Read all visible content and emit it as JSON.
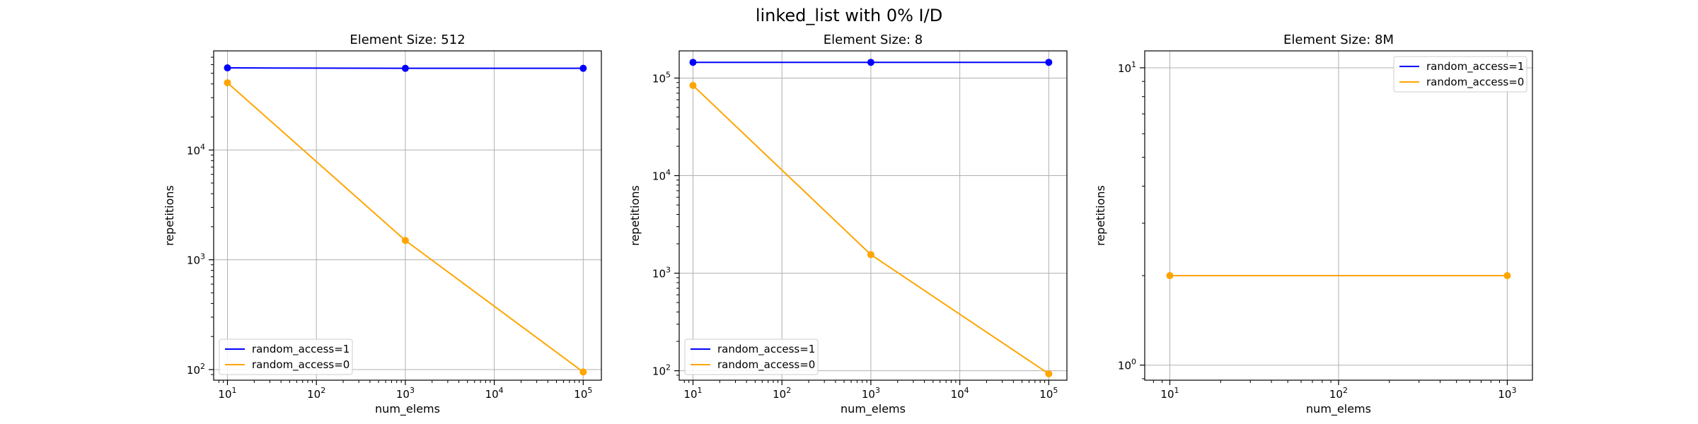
{
  "figure": {
    "title": "linked_list with 0% I/D"
  },
  "colors": {
    "random_access=1": "#0000ff",
    "random_access=0": "#ffa500",
    "grid": "#b0b0b0"
  },
  "chart_data": [
    {
      "type": "line",
      "title": "Element Size: 512",
      "xlabel": "num_elems",
      "ylabel": "repetitions",
      "xscale": "log",
      "yscale": "log",
      "xlim": [
        7,
        160000
      ],
      "ylim": [
        80,
        80000
      ],
      "xticks": [
        10,
        100,
        1000,
        10000,
        100000
      ],
      "yticks": [
        100,
        1000,
        10000
      ],
      "grid": true,
      "legend_position": "lower-left",
      "series": [
        {
          "name": "random_access=1",
          "x": [
            10,
            1000,
            100000
          ],
          "y": [
            56000,
            55500,
            55500
          ]
        },
        {
          "name": "random_access=0",
          "x": [
            10,
            1000,
            100000
          ],
          "y": [
            41000,
            1500,
            95
          ]
        }
      ]
    },
    {
      "type": "line",
      "title": "Element Size: 8",
      "xlabel": "num_elems",
      "ylabel": "repetitions",
      "xscale": "log",
      "yscale": "log",
      "xlim": [
        7,
        160000
      ],
      "ylim": [
        80,
        190000
      ],
      "xticks": [
        10,
        100,
        1000,
        10000,
        100000
      ],
      "yticks": [
        100,
        1000,
        10000,
        100000
      ],
      "grid": true,
      "legend_position": "lower-left",
      "series": [
        {
          "name": "random_access=1",
          "x": [
            10,
            1000,
            100000
          ],
          "y": [
            145000,
            145000,
            145000
          ]
        },
        {
          "name": "random_access=0",
          "x": [
            10,
            1000,
            100000
          ],
          "y": [
            84000,
            1550,
            93
          ]
        }
      ]
    },
    {
      "type": "line",
      "title": "Element Size: 8M",
      "xlabel": "num_elems",
      "ylabel": "repetitions",
      "xscale": "log",
      "yscale": "log",
      "xlim": [
        7.1,
        1410
      ],
      "ylim": [
        0.89,
        11.4
      ],
      "xticks": [
        10,
        100,
        1000
      ],
      "yticks": [
        1,
        10
      ],
      "grid": true,
      "legend_position": "top-right",
      "series": [
        {
          "name": "random_access=1",
          "x": [],
          "y": []
        },
        {
          "name": "random_access=0",
          "x": [
            10,
            1000
          ],
          "y": [
            2,
            2
          ]
        }
      ]
    }
  ]
}
